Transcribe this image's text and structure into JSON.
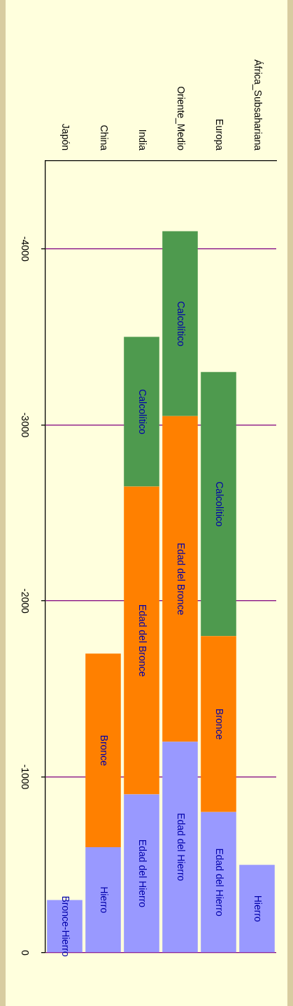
{
  "chart_data": {
    "type": "bar",
    "stacked": true,
    "grid": "y",
    "legend": false,
    "categories": [
      "Japón",
      "China",
      "India",
      "Oriente_Medio",
      "Europa",
      "África_Subsahariana"
    ],
    "ylim": [
      0,
      -4500
    ],
    "yticks": [
      -4000,
      -3000,
      -2000,
      -1000,
      0
    ],
    "series": [
      {
        "color": "#9999ff",
        "values": [
          -300,
          -600,
          -900,
          -1200,
          -800,
          -500
        ],
        "value_labels": [
          "Bronce-Hierro",
          "Hierro",
          "Edad del Hierro",
          "Edad del Hierro",
          "Edad del Hierro",
          "Hierro"
        ]
      },
      {
        "color": "#ff8000",
        "values": [
          null,
          -1100,
          -1750,
          -1850,
          -1000,
          null
        ],
        "value_labels": [
          null,
          "Bronce",
          "Edad del Bronce",
          "Edad del Bronce",
          "Bronce",
          null
        ]
      },
      {
        "color": "#4e9a4e",
        "values": [
          null,
          null,
          -850,
          -1050,
          -1500,
          null
        ],
        "value_labels": [
          null,
          null,
          "Calcolítico",
          "Calcolítico",
          "Calcolítico",
          null
        ]
      }
    ]
  }
}
